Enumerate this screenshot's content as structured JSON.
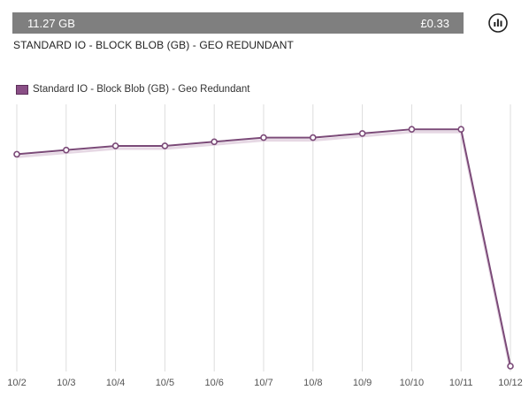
{
  "summary": {
    "quantity": "11.27 GB",
    "cost": "£0.33"
  },
  "meter_name": "STANDARD IO - BLOCK BLOB (GB) - GEO REDUNDANT",
  "icons": {
    "chart_toggle": "bar-chart-icon"
  },
  "colors": {
    "summary_bar": "#7f7f7f",
    "series": "#7b4a78",
    "grid": "#dddddd"
  },
  "chart_data": {
    "type": "line",
    "categories": [
      "10/2",
      "10/3",
      "10/4",
      "10/5",
      "10/6",
      "10/7",
      "10/8",
      "10/9",
      "10/10",
      "10/11",
      "10/12"
    ],
    "series": [
      {
        "name": "Standard IO - Block Blob (GB) - Geo Redundant",
        "values": [
          11.05,
          11.1,
          11.15,
          11.15,
          11.2,
          11.25,
          11.25,
          11.3,
          11.35,
          11.35,
          8.5
        ]
      }
    ],
    "ylim": [
      8.5,
      11.65
    ],
    "grid": "vertical",
    "legend": "top-left"
  }
}
